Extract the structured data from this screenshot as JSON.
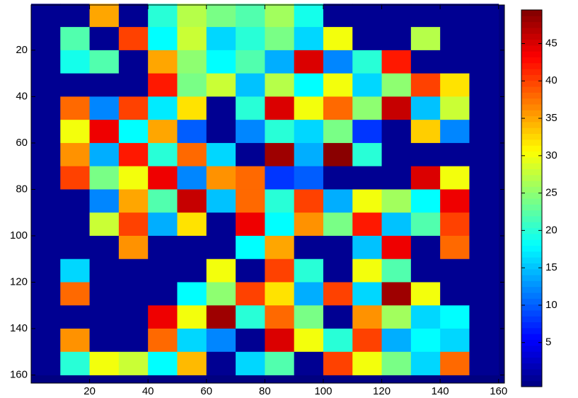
{
  "chart_data": {
    "type": "heatmap",
    "x": [
      5,
      15,
      25,
      35,
      45,
      55,
      65,
      75,
      85,
      95,
      105,
      115,
      125,
      135,
      145,
      155
    ],
    "y": [
      5,
      15,
      25,
      35,
      45,
      55,
      65,
      75,
      85,
      95,
      105,
      115,
      125,
      135,
      145,
      155
    ],
    "values": [
      [
        0,
        0,
        35,
        0,
        20,
        27,
        24,
        22,
        26,
        19,
        0,
        0,
        0,
        0,
        0,
        0
      ],
      [
        0,
        22,
        0,
        40,
        18,
        28,
        16,
        20,
        24,
        16,
        30,
        0,
        0,
        27,
        0,
        0
      ],
      [
        0,
        19,
        22,
        0,
        35,
        25,
        18,
        22,
        14,
        45,
        12,
        20,
        42,
        0,
        0,
        0
      ],
      [
        0,
        0,
        0,
        0,
        42,
        24,
        28,
        15,
        27,
        18,
        30,
        16,
        25,
        40,
        32,
        0
      ],
      [
        0,
        38,
        12,
        40,
        17,
        32,
        0,
        20,
        45,
        30,
        38,
        25,
        46,
        15,
        28,
        0
      ],
      [
        0,
        30,
        44,
        18,
        35,
        10,
        0,
        12,
        20,
        16,
        24,
        8,
        0,
        33,
        12,
        0
      ],
      [
        0,
        36,
        14,
        42,
        20,
        38,
        16,
        0,
        48,
        14,
        49,
        20,
        0,
        0,
        0,
        0
      ],
      [
        0,
        40,
        24,
        30,
        44,
        12,
        36,
        38,
        8,
        10,
        0,
        0,
        0,
        45,
        30,
        0
      ],
      [
        0,
        0,
        12,
        35,
        22,
        46,
        15,
        38,
        20,
        40,
        14,
        30,
        26,
        18,
        44,
        0
      ],
      [
        0,
        0,
        28,
        40,
        14,
        32,
        0,
        44,
        18,
        36,
        24,
        42,
        15,
        22,
        40,
        0
      ],
      [
        0,
        0,
        0,
        36,
        0,
        0,
        0,
        18,
        35,
        0,
        0,
        15,
        44,
        0,
        38,
        0
      ],
      [
        0,
        16,
        0,
        0,
        0,
        0,
        30,
        0,
        40,
        20,
        0,
        30,
        22,
        0,
        0,
        0
      ],
      [
        0,
        38,
        0,
        0,
        0,
        18,
        25,
        40,
        32,
        14,
        40,
        16,
        48,
        30,
        0,
        0
      ],
      [
        0,
        0,
        0,
        0,
        44,
        30,
        48,
        20,
        38,
        24,
        0,
        36,
        26,
        16,
        18,
        0
      ],
      [
        0,
        36,
        0,
        0,
        38,
        16,
        12,
        0,
        45,
        30,
        20,
        40,
        14,
        18,
        16,
        0
      ],
      [
        0,
        20,
        30,
        28,
        18,
        34,
        0,
        16,
        22,
        0,
        40,
        30,
        24,
        16,
        38,
        0
      ]
    ],
    "xlim": [
      0,
      162
    ],
    "xticks": [
      20,
      40,
      60,
      80,
      100,
      120,
      140,
      160
    ],
    "ylim": [
      0.5,
      163.5
    ],
    "yticks": [
      20,
      40,
      60,
      80,
      100,
      120,
      140,
      160
    ],
    "y_reversed": true,
    "colormap": "jet",
    "clim": [
      -0.9,
      49.5
    ],
    "colorbar_ticks": [
      5,
      10,
      15,
      20,
      25,
      30,
      35,
      40,
      45
    ]
  }
}
